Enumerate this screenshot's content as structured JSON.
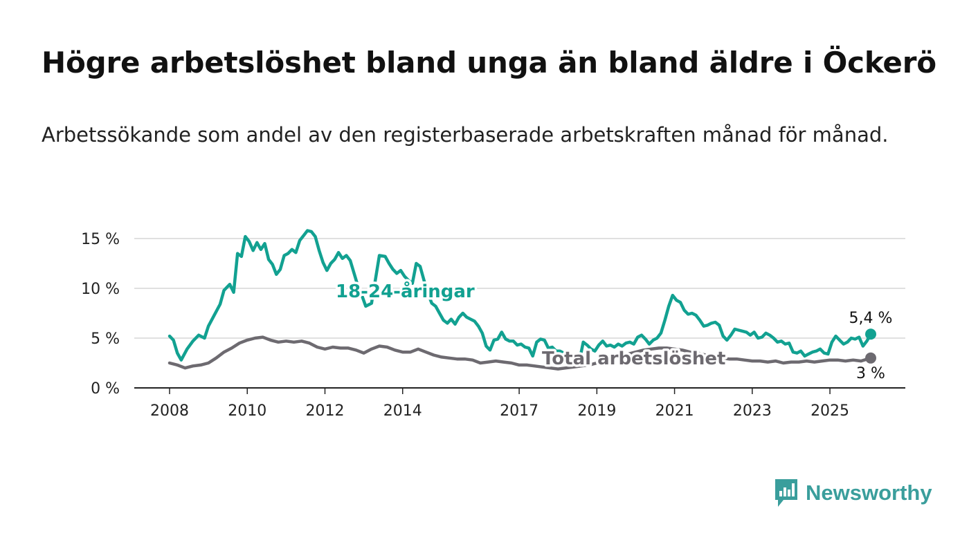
{
  "header": {
    "title": "Högre arbetslöshet bland unga än bland äldre i Öckerö",
    "subtitle": "Arbetssökande som andel av den registerbaserade arbetskraften månad för månad."
  },
  "brand": {
    "name": "Newsworthy",
    "icon": "newsworthy-logo-icon",
    "color": "#3a9e9c"
  },
  "chart_data": {
    "type": "line",
    "ylim": [
      0,
      15
    ],
    "y_ticks": [
      0,
      5,
      10,
      15
    ],
    "y_tick_labels": [
      "0 %",
      "5 %",
      "10 %",
      "15 %"
    ],
    "x_ticks": [
      2008,
      2010,
      2012,
      2014,
      2017,
      2019,
      2021,
      2023,
      2025
    ],
    "x_tick_labels": [
      "2008",
      "2010",
      "2012",
      "2014",
      "2017",
      "2019",
      "2021",
      "2023",
      "2025"
    ],
    "grid": true,
    "series": [
      {
        "name": "18-24-åringar",
        "color": "#12a191",
        "end_label": "5,4 %",
        "points": [
          [
            2008.0,
            5.2
          ],
          [
            2008.1,
            4.8
          ],
          [
            2008.2,
            3.5
          ],
          [
            2008.3,
            2.8
          ],
          [
            2008.45,
            3.9
          ],
          [
            2008.6,
            4.7
          ],
          [
            2008.75,
            5.3
          ],
          [
            2008.9,
            5.0
          ],
          [
            2009.0,
            6.2
          ],
          [
            2009.15,
            7.3
          ],
          [
            2009.3,
            8.4
          ],
          [
            2009.4,
            9.8
          ],
          [
            2009.55,
            10.4
          ],
          [
            2009.65,
            9.6
          ],
          [
            2009.75,
            13.5
          ],
          [
            2009.85,
            13.2
          ],
          [
            2009.95,
            15.2
          ],
          [
            2010.05,
            14.7
          ],
          [
            2010.15,
            13.8
          ],
          [
            2010.25,
            14.6
          ],
          [
            2010.35,
            13.9
          ],
          [
            2010.45,
            14.5
          ],
          [
            2010.55,
            12.9
          ],
          [
            2010.65,
            12.4
          ],
          [
            2010.75,
            11.4
          ],
          [
            2010.85,
            11.9
          ],
          [
            2010.95,
            13.3
          ],
          [
            2011.05,
            13.5
          ],
          [
            2011.15,
            13.9
          ],
          [
            2011.25,
            13.6
          ],
          [
            2011.35,
            14.8
          ],
          [
            2011.45,
            15.3
          ],
          [
            2011.55,
            15.8
          ],
          [
            2011.65,
            15.7
          ],
          [
            2011.75,
            15.2
          ],
          [
            2011.85,
            13.8
          ],
          [
            2011.95,
            12.6
          ],
          [
            2012.05,
            11.8
          ],
          [
            2012.15,
            12.5
          ],
          [
            2012.25,
            12.9
          ],
          [
            2012.35,
            13.6
          ],
          [
            2012.45,
            13.0
          ],
          [
            2012.55,
            13.3
          ],
          [
            2012.65,
            12.8
          ],
          [
            2012.75,
            11.5
          ],
          [
            2012.85,
            10.2
          ],
          [
            2012.95,
            9.3
          ],
          [
            2013.05,
            8.2
          ],
          [
            2013.2,
            8.5
          ],
          [
            2013.4,
            13.3
          ],
          [
            2013.55,
            13.2
          ],
          [
            2013.65,
            12.5
          ],
          [
            2013.75,
            11.9
          ],
          [
            2013.85,
            11.5
          ],
          [
            2013.95,
            11.8
          ],
          [
            2014.05,
            11.2
          ],
          [
            2014.15,
            10.8
          ],
          [
            2014.25,
            10.5
          ],
          [
            2014.35,
            12.5
          ],
          [
            2014.45,
            12.2
          ],
          [
            2014.55,
            10.8
          ],
          [
            2014.65,
            9.5
          ],
          [
            2014.75,
            8.5
          ],
          [
            2014.85,
            8.2
          ],
          [
            2014.95,
            7.5
          ],
          [
            2015.05,
            6.8
          ],
          [
            2015.15,
            6.5
          ],
          [
            2015.25,
            6.9
          ],
          [
            2015.35,
            6.4
          ],
          [
            2015.45,
            7.1
          ],
          [
            2015.55,
            7.5
          ],
          [
            2015.65,
            7.1
          ],
          [
            2015.75,
            6.9
          ],
          [
            2015.85,
            6.7
          ],
          [
            2015.95,
            6.2
          ],
          [
            2016.05,
            5.5
          ],
          [
            2016.15,
            4.2
          ],
          [
            2016.25,
            3.8
          ],
          [
            2016.35,
            4.8
          ],
          [
            2016.45,
            4.9
          ],
          [
            2016.55,
            5.6
          ],
          [
            2016.65,
            4.9
          ],
          [
            2016.75,
            4.7
          ],
          [
            2016.85,
            4.7
          ],
          [
            2016.95,
            4.3
          ],
          [
            2017.05,
            4.4
          ],
          [
            2017.15,
            4.1
          ],
          [
            2017.25,
            4.0
          ],
          [
            2017.35,
            3.2
          ],
          [
            2017.45,
            4.6
          ],
          [
            2017.55,
            4.9
          ],
          [
            2017.65,
            4.8
          ],
          [
            2017.75,
            4.0
          ],
          [
            2017.85,
            4.1
          ],
          [
            2017.95,
            3.7
          ],
          [
            2018.05,
            3.7
          ],
          [
            2018.15,
            3.5
          ],
          [
            2018.25,
            3.2
          ],
          [
            2018.35,
            2.8
          ],
          [
            2018.45,
            2.6
          ],
          [
            2018.55,
            2.7
          ],
          [
            2018.65,
            4.6
          ],
          [
            2018.75,
            4.3
          ],
          [
            2018.85,
            3.9
          ],
          [
            2018.95,
            3.7
          ],
          [
            2019.05,
            4.3
          ],
          [
            2019.15,
            4.7
          ],
          [
            2019.25,
            4.2
          ],
          [
            2019.35,
            4.3
          ],
          [
            2019.45,
            4.1
          ],
          [
            2019.55,
            4.4
          ],
          [
            2019.65,
            4.2
          ],
          [
            2019.75,
            4.5
          ],
          [
            2019.85,
            4.6
          ],
          [
            2019.95,
            4.4
          ],
          [
            2020.05,
            5.1
          ],
          [
            2020.15,
            5.3
          ],
          [
            2020.25,
            4.9
          ],
          [
            2020.35,
            4.4
          ],
          [
            2020.45,
            4.8
          ],
          [
            2020.55,
            5.0
          ],
          [
            2020.65,
            5.5
          ],
          [
            2020.75,
            6.8
          ],
          [
            2020.85,
            8.2
          ],
          [
            2020.95,
            9.3
          ],
          [
            2021.05,
            8.8
          ],
          [
            2021.15,
            8.6
          ],
          [
            2021.25,
            7.8
          ],
          [
            2021.35,
            7.4
          ],
          [
            2021.45,
            7.5
          ],
          [
            2021.55,
            7.3
          ],
          [
            2021.65,
            6.8
          ],
          [
            2021.75,
            6.2
          ],
          [
            2021.85,
            6.3
          ],
          [
            2021.95,
            6.5
          ],
          [
            2022.05,
            6.6
          ],
          [
            2022.15,
            6.3
          ],
          [
            2022.25,
            5.2
          ],
          [
            2022.35,
            4.8
          ],
          [
            2022.45,
            5.3
          ],
          [
            2022.55,
            5.9
          ],
          [
            2022.65,
            5.8
          ],
          [
            2022.75,
            5.7
          ],
          [
            2022.85,
            5.6
          ],
          [
            2022.95,
            5.3
          ],
          [
            2023.05,
            5.6
          ],
          [
            2023.15,
            5.0
          ],
          [
            2023.25,
            5.1
          ],
          [
            2023.35,
            5.5
          ],
          [
            2023.45,
            5.3
          ],
          [
            2023.55,
            5.0
          ],
          [
            2023.65,
            4.6
          ],
          [
            2023.75,
            4.7
          ],
          [
            2023.85,
            4.4
          ],
          [
            2023.95,
            4.5
          ],
          [
            2024.05,
            3.6
          ],
          [
            2024.15,
            3.5
          ],
          [
            2024.25,
            3.7
          ],
          [
            2024.35,
            3.2
          ],
          [
            2024.45,
            3.4
          ],
          [
            2024.55,
            3.6
          ],
          [
            2024.65,
            3.7
          ],
          [
            2024.75,
            3.9
          ],
          [
            2024.85,
            3.5
          ],
          [
            2024.95,
            3.4
          ],
          [
            2025.05,
            4.6
          ],
          [
            2025.15,
            5.2
          ],
          [
            2025.25,
            4.8
          ],
          [
            2025.35,
            4.4
          ],
          [
            2025.45,
            4.6
          ],
          [
            2025.55,
            5.0
          ],
          [
            2025.65,
            4.9
          ],
          [
            2025.75,
            5.1
          ],
          [
            2025.85,
            4.2
          ],
          [
            2025.95,
            4.7
          ],
          [
            2026.05,
            5.4
          ]
        ]
      },
      {
        "name": "Total arbetslöshet",
        "color": "#6d6a70",
        "end_label": "3 %",
        "points": [
          [
            2008.0,
            2.5
          ],
          [
            2008.2,
            2.3
          ],
          [
            2008.4,
            2.0
          ],
          [
            2008.6,
            2.2
          ],
          [
            2008.8,
            2.3
          ],
          [
            2009.0,
            2.5
          ],
          [
            2009.2,
            3.0
          ],
          [
            2009.4,
            3.6
          ],
          [
            2009.6,
            4.0
          ],
          [
            2009.8,
            4.5
          ],
          [
            2010.0,
            4.8
          ],
          [
            2010.2,
            5.0
          ],
          [
            2010.4,
            5.1
          ],
          [
            2010.6,
            4.8
          ],
          [
            2010.8,
            4.6
          ],
          [
            2011.0,
            4.7
          ],
          [
            2011.2,
            4.6
          ],
          [
            2011.4,
            4.7
          ],
          [
            2011.6,
            4.5
          ],
          [
            2011.8,
            4.1
          ],
          [
            2012.0,
            3.9
          ],
          [
            2012.2,
            4.1
          ],
          [
            2012.4,
            4.0
          ],
          [
            2012.6,
            4.0
          ],
          [
            2012.8,
            3.8
          ],
          [
            2013.0,
            3.5
          ],
          [
            2013.2,
            3.9
          ],
          [
            2013.4,
            4.2
          ],
          [
            2013.6,
            4.1
          ],
          [
            2013.8,
            3.8
          ],
          [
            2014.0,
            3.6
          ],
          [
            2014.2,
            3.6
          ],
          [
            2014.4,
            3.9
          ],
          [
            2014.6,
            3.6
          ],
          [
            2014.8,
            3.3
          ],
          [
            2015.0,
            3.1
          ],
          [
            2015.2,
            3.0
          ],
          [
            2015.4,
            2.9
          ],
          [
            2015.6,
            2.9
          ],
          [
            2015.8,
            2.8
          ],
          [
            2016.0,
            2.5
          ],
          [
            2016.2,
            2.6
          ],
          [
            2016.4,
            2.7
          ],
          [
            2016.6,
            2.6
          ],
          [
            2016.8,
            2.5
          ],
          [
            2017.0,
            2.3
          ],
          [
            2017.2,
            2.3
          ],
          [
            2017.4,
            2.2
          ],
          [
            2017.6,
            2.1
          ],
          [
            2017.8,
            2.0
          ],
          [
            2018.0,
            1.9
          ],
          [
            2018.2,
            2.0
          ],
          [
            2018.4,
            2.1
          ],
          [
            2018.6,
            2.2
          ],
          [
            2018.8,
            2.3
          ],
          [
            2019.0,
            2.5
          ],
          [
            2019.2,
            2.7
          ],
          [
            2019.4,
            2.9
          ],
          [
            2019.6,
            3.2
          ],
          [
            2019.8,
            3.4
          ],
          [
            2020.0,
            3.6
          ],
          [
            2020.2,
            3.8
          ],
          [
            2020.4,
            3.9
          ],
          [
            2020.6,
            4.0
          ],
          [
            2020.8,
            4.0
          ],
          [
            2021.0,
            3.9
          ],
          [
            2021.2,
            3.8
          ],
          [
            2021.4,
            3.6
          ],
          [
            2021.6,
            3.5
          ],
          [
            2021.8,
            3.3
          ],
          [
            2022.0,
            3.1
          ],
          [
            2022.2,
            3.0
          ],
          [
            2022.4,
            2.9
          ],
          [
            2022.6,
            2.9
          ],
          [
            2022.8,
            2.8
          ],
          [
            2023.0,
            2.7
          ],
          [
            2023.2,
            2.7
          ],
          [
            2023.4,
            2.6
          ],
          [
            2023.6,
            2.7
          ],
          [
            2023.8,
            2.5
          ],
          [
            2024.0,
            2.6
          ],
          [
            2024.2,
            2.6
          ],
          [
            2024.4,
            2.7
          ],
          [
            2024.6,
            2.6
          ],
          [
            2024.8,
            2.7
          ],
          [
            2025.0,
            2.8
          ],
          [
            2025.2,
            2.8
          ],
          [
            2025.4,
            2.7
          ],
          [
            2025.6,
            2.8
          ],
          [
            2025.8,
            2.7
          ],
          [
            2026.05,
            3.0
          ]
        ]
      }
    ]
  }
}
